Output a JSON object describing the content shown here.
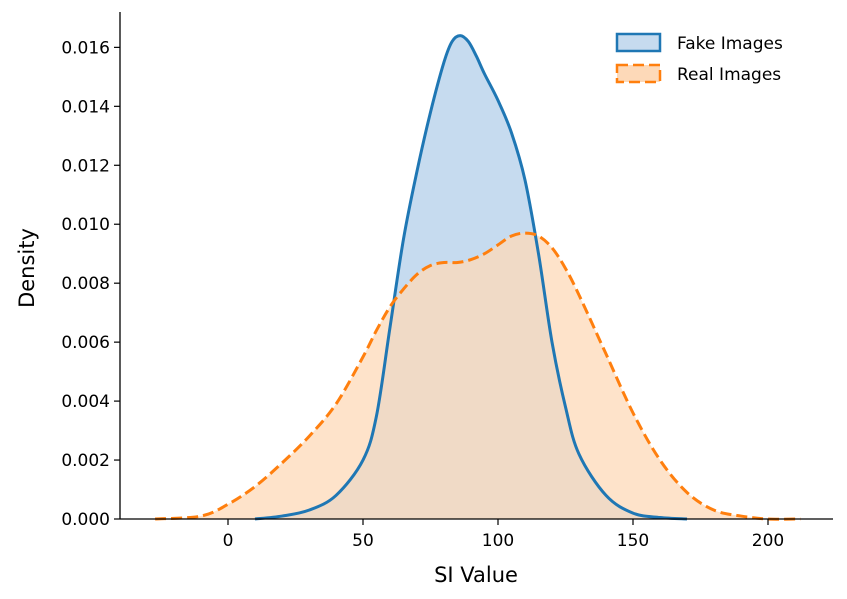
{
  "chart_data": {
    "type": "area",
    "xlabel": "SI Value",
    "ylabel": "Density",
    "xlim": [
      -40,
      225
    ],
    "ylim": [
      0,
      0.0172
    ],
    "grid": false,
    "legend_placement": "top-right",
    "x_ticks": [
      "0",
      "50",
      "100",
      "150",
      "200"
    ],
    "y_ticks": [
      "0.000",
      "0.002",
      "0.004",
      "0.006",
      "0.008",
      "0.010",
      "0.012",
      "0.014",
      "0.016"
    ],
    "series": [
      {
        "name": "Fake Images",
        "color": "#1f77b4",
        "fill": "#c6dbef",
        "line_style": "solid",
        "x": [
          10,
          20,
          30,
          40,
          50,
          55,
          60,
          65,
          70,
          75,
          80,
          83,
          86,
          89,
          92,
          95,
          100,
          105,
          110,
          115,
          120,
          125,
          130,
          140,
          150,
          160,
          170
        ],
        "y": [
          0.0,
          0.0001,
          0.0003,
          0.0008,
          0.002,
          0.0035,
          0.0065,
          0.0095,
          0.0118,
          0.0138,
          0.0155,
          0.0162,
          0.0164,
          0.0162,
          0.0157,
          0.0151,
          0.0142,
          0.0131,
          0.0115,
          0.009,
          0.006,
          0.0038,
          0.0022,
          0.0008,
          0.0002,
          5e-05,
          0.0
        ]
      },
      {
        "name": "Real Images",
        "color": "#ff7f0e",
        "fill": "#fdd9b8",
        "line_style": "dashed",
        "x": [
          -27,
          -10,
          0,
          10,
          20,
          30,
          40,
          50,
          55,
          60,
          65,
          70,
          75,
          80,
          85,
          90,
          95,
          100,
          105,
          110,
          115,
          120,
          125,
          130,
          140,
          150,
          160,
          170,
          180,
          190,
          200,
          212
        ],
        "y": [
          0.0,
          0.0001,
          0.0005,
          0.0011,
          0.0019,
          0.0028,
          0.0039,
          0.0055,
          0.0064,
          0.0072,
          0.0078,
          0.0083,
          0.0086,
          0.0087,
          0.0087,
          0.0088,
          0.009,
          0.0093,
          0.0096,
          0.0097,
          0.0096,
          0.0092,
          0.0085,
          0.0076,
          0.0056,
          0.0036,
          0.002,
          0.0009,
          0.0003,
          0.0001,
          0.0,
          0.0
        ]
      }
    ]
  }
}
